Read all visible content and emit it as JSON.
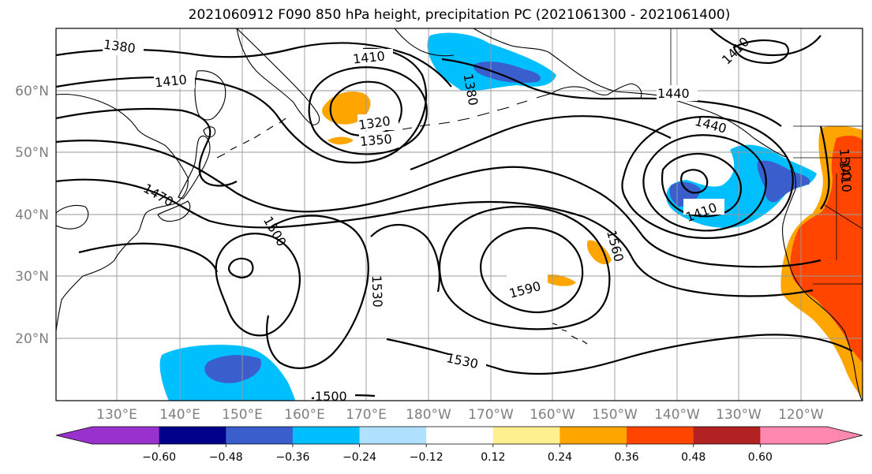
{
  "title": "2021060912 F090 850 hPa height, precipitation PC (2021061300 - 2021061400)",
  "map": {
    "projection": "PlateCarree",
    "lat_labels": [
      "60°N",
      "50°N",
      "40°N",
      "30°N",
      "20°N"
    ],
    "lon_labels": [
      "130°E",
      "140°E",
      "150°E",
      "160°E",
      "170°E",
      "180°W",
      "170°W",
      "160°W",
      "150°W",
      "140°W",
      "130°W",
      "120°W"
    ],
    "contour_labels": [
      "1380",
      "1410",
      "1410",
      "1380",
      "1320",
      "1350",
      "1410",
      "1440",
      "1440",
      "1410",
      "1410",
      "1500",
      "1470",
      "1500",
      "1530",
      "1590",
      "1560",
      "1530",
      "1500"
    ],
    "fill_colors": {
      "orange": "#ffa500",
      "light_orange": "#ffe680",
      "red_orange": "#ff4500",
      "blue": "#00bfff",
      "mid_blue": "#3a5fcd",
      "light_blue": "#b0e2ff"
    }
  },
  "colorbar": {
    "colors": [
      "#9932cc",
      "#00008b",
      "#3a5fcd",
      "#00bfff",
      "#b0e2ff",
      "#ffffff",
      "#fff08f",
      "#ffa500",
      "#ff4500",
      "#b22222",
      "#ff88b0"
    ],
    "under_color": "#9932cc",
    "over_color": "#ff88b0",
    "tick_labels": [
      "−0.60",
      "−0.48",
      "−0.36",
      "−0.24",
      "−0.12",
      "0.12",
      "0.24",
      "0.36",
      "0.48",
      "0.60"
    ]
  }
}
